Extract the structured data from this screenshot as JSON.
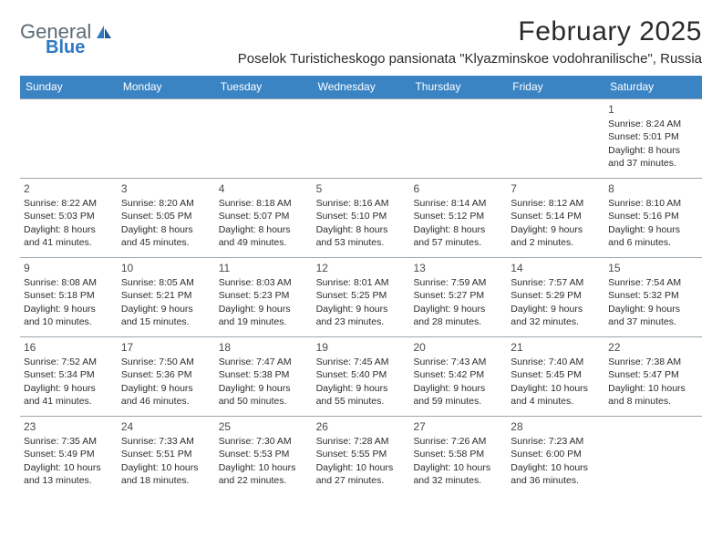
{
  "brand": {
    "name_part1": "General",
    "name_part2": "Blue",
    "color_general": "#5b6b75",
    "color_blue": "#2f78c2"
  },
  "title": "February 2025",
  "location": "Poselok Turisticheskogo pansionata \"Klyazminskoe vodohranilische\", Russia",
  "colors": {
    "header_bg": "#3b84c4",
    "header_text": "#ffffff",
    "border": "#9aa6ae",
    "text": "#2b2b2b"
  },
  "weekdays": [
    "Sunday",
    "Monday",
    "Tuesday",
    "Wednesday",
    "Thursday",
    "Friday",
    "Saturday"
  ],
  "weeks": [
    [
      {
        "n": "",
        "lines": []
      },
      {
        "n": "",
        "lines": []
      },
      {
        "n": "",
        "lines": []
      },
      {
        "n": "",
        "lines": []
      },
      {
        "n": "",
        "lines": []
      },
      {
        "n": "",
        "lines": []
      },
      {
        "n": "1",
        "lines": [
          "Sunrise: 8:24 AM",
          "Sunset: 5:01 PM",
          "Daylight: 8 hours",
          "and 37 minutes."
        ]
      }
    ],
    [
      {
        "n": "2",
        "lines": [
          "Sunrise: 8:22 AM",
          "Sunset: 5:03 PM",
          "Daylight: 8 hours",
          "and 41 minutes."
        ]
      },
      {
        "n": "3",
        "lines": [
          "Sunrise: 8:20 AM",
          "Sunset: 5:05 PM",
          "Daylight: 8 hours",
          "and 45 minutes."
        ]
      },
      {
        "n": "4",
        "lines": [
          "Sunrise: 8:18 AM",
          "Sunset: 5:07 PM",
          "Daylight: 8 hours",
          "and 49 minutes."
        ]
      },
      {
        "n": "5",
        "lines": [
          "Sunrise: 8:16 AM",
          "Sunset: 5:10 PM",
          "Daylight: 8 hours",
          "and 53 minutes."
        ]
      },
      {
        "n": "6",
        "lines": [
          "Sunrise: 8:14 AM",
          "Sunset: 5:12 PM",
          "Daylight: 8 hours",
          "and 57 minutes."
        ]
      },
      {
        "n": "7",
        "lines": [
          "Sunrise: 8:12 AM",
          "Sunset: 5:14 PM",
          "Daylight: 9 hours",
          "and 2 minutes."
        ]
      },
      {
        "n": "8",
        "lines": [
          "Sunrise: 8:10 AM",
          "Sunset: 5:16 PM",
          "Daylight: 9 hours",
          "and 6 minutes."
        ]
      }
    ],
    [
      {
        "n": "9",
        "lines": [
          "Sunrise: 8:08 AM",
          "Sunset: 5:18 PM",
          "Daylight: 9 hours",
          "and 10 minutes."
        ]
      },
      {
        "n": "10",
        "lines": [
          "Sunrise: 8:05 AM",
          "Sunset: 5:21 PM",
          "Daylight: 9 hours",
          "and 15 minutes."
        ]
      },
      {
        "n": "11",
        "lines": [
          "Sunrise: 8:03 AM",
          "Sunset: 5:23 PM",
          "Daylight: 9 hours",
          "and 19 minutes."
        ]
      },
      {
        "n": "12",
        "lines": [
          "Sunrise: 8:01 AM",
          "Sunset: 5:25 PM",
          "Daylight: 9 hours",
          "and 23 minutes."
        ]
      },
      {
        "n": "13",
        "lines": [
          "Sunrise: 7:59 AM",
          "Sunset: 5:27 PM",
          "Daylight: 9 hours",
          "and 28 minutes."
        ]
      },
      {
        "n": "14",
        "lines": [
          "Sunrise: 7:57 AM",
          "Sunset: 5:29 PM",
          "Daylight: 9 hours",
          "and 32 minutes."
        ]
      },
      {
        "n": "15",
        "lines": [
          "Sunrise: 7:54 AM",
          "Sunset: 5:32 PM",
          "Daylight: 9 hours",
          "and 37 minutes."
        ]
      }
    ],
    [
      {
        "n": "16",
        "lines": [
          "Sunrise: 7:52 AM",
          "Sunset: 5:34 PM",
          "Daylight: 9 hours",
          "and 41 minutes."
        ]
      },
      {
        "n": "17",
        "lines": [
          "Sunrise: 7:50 AM",
          "Sunset: 5:36 PM",
          "Daylight: 9 hours",
          "and 46 minutes."
        ]
      },
      {
        "n": "18",
        "lines": [
          "Sunrise: 7:47 AM",
          "Sunset: 5:38 PM",
          "Daylight: 9 hours",
          "and 50 minutes."
        ]
      },
      {
        "n": "19",
        "lines": [
          "Sunrise: 7:45 AM",
          "Sunset: 5:40 PM",
          "Daylight: 9 hours",
          "and 55 minutes."
        ]
      },
      {
        "n": "20",
        "lines": [
          "Sunrise: 7:43 AM",
          "Sunset: 5:42 PM",
          "Daylight: 9 hours",
          "and 59 minutes."
        ]
      },
      {
        "n": "21",
        "lines": [
          "Sunrise: 7:40 AM",
          "Sunset: 5:45 PM",
          "Daylight: 10 hours",
          "and 4 minutes."
        ]
      },
      {
        "n": "22",
        "lines": [
          "Sunrise: 7:38 AM",
          "Sunset: 5:47 PM",
          "Daylight: 10 hours",
          "and 8 minutes."
        ]
      }
    ],
    [
      {
        "n": "23",
        "lines": [
          "Sunrise: 7:35 AM",
          "Sunset: 5:49 PM",
          "Daylight: 10 hours",
          "and 13 minutes."
        ]
      },
      {
        "n": "24",
        "lines": [
          "Sunrise: 7:33 AM",
          "Sunset: 5:51 PM",
          "Daylight: 10 hours",
          "and 18 minutes."
        ]
      },
      {
        "n": "25",
        "lines": [
          "Sunrise: 7:30 AM",
          "Sunset: 5:53 PM",
          "Daylight: 10 hours",
          "and 22 minutes."
        ]
      },
      {
        "n": "26",
        "lines": [
          "Sunrise: 7:28 AM",
          "Sunset: 5:55 PM",
          "Daylight: 10 hours",
          "and 27 minutes."
        ]
      },
      {
        "n": "27",
        "lines": [
          "Sunrise: 7:26 AM",
          "Sunset: 5:58 PM",
          "Daylight: 10 hours",
          "and 32 minutes."
        ]
      },
      {
        "n": "28",
        "lines": [
          "Sunrise: 7:23 AM",
          "Sunset: 6:00 PM",
          "Daylight: 10 hours",
          "and 36 minutes."
        ]
      },
      {
        "n": "",
        "lines": []
      }
    ]
  ]
}
